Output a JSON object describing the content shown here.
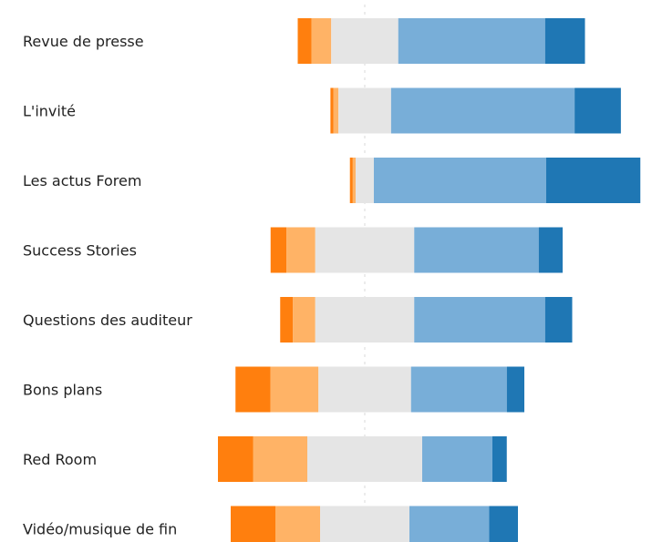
{
  "chart_data": {
    "type": "bar",
    "stacked": true,
    "orientation": "horizontal",
    "diverging": true,
    "grid": false,
    "categories": [
      "Revue de presse",
      "L'invité",
      "Les actus Forem",
      "Success Stories",
      "Questions des auditeur",
      "Bons plans",
      "Red Room",
      "Vidéo/musique de fin"
    ],
    "series": [
      {
        "color": "#ff7f0e",
        "values": [
          4.3,
          0.9,
          0.9,
          5.0,
          4.0,
          11.0,
          11.0,
          14.0
        ]
      },
      {
        "color": "#ffb366",
        "values": [
          6.2,
          1.6,
          0.9,
          9.0,
          7.0,
          15.0,
          17.0,
          14.0
        ]
      },
      {
        "color": "#e5e5e5",
        "values": [
          21.0,
          16.5,
          5.7,
          31.0,
          31.0,
          29.0,
          36.0,
          28.0
        ]
      },
      {
        "color": "#78aed8",
        "values": [
          46.0,
          57.5,
          54.0,
          39.0,
          41.0,
          30.0,
          22.0,
          25.0
        ]
      },
      {
        "color": "#1f77b4",
        "values": [
          12.5,
          14.5,
          29.5,
          7.5,
          8.5,
          5.5,
          4.5,
          9.0
        ]
      }
    ]
  }
}
